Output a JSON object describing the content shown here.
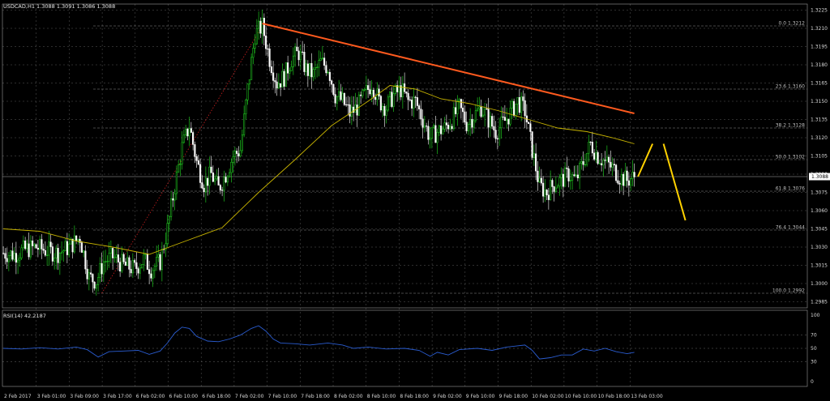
{
  "header": {
    "symbol_info": "USDCAD,H1  1.3088 1.3091 1.3086 1.3088"
  },
  "price_tag": "1.3088",
  "colors": {
    "background": "#000000",
    "grid": "#5a5a5a",
    "bull": "#22dd22",
    "bear": "#ffffff",
    "ma": "#c8b400",
    "trend": "#ff5a1e",
    "projection": "#ffd200",
    "rsi": "#2a5cd0"
  },
  "chart_data": [
    {
      "type": "candlestick",
      "title": "USDCAD,H1",
      "ylim": [
        1.298,
        1.323
      ],
      "y_ticks": [
        "1.3225",
        "1.3210",
        "1.3195",
        "1.3180",
        "1.3165",
        "1.3150",
        "1.3135",
        "1.3120",
        "1.3105",
        "1.3090",
        "1.3075",
        "1.3060",
        "1.3045",
        "1.3030",
        "1.3015",
        "1.3000",
        "1.2985"
      ],
      "x_ticks": [
        "2 Feb 2017",
        "3 Feb 01:00",
        "3 Feb 09:00",
        "3 Feb 17:00",
        "6 Feb 02:00",
        "6 Feb 10:00",
        "6 Feb 18:00",
        "7 Feb 02:00",
        "7 Feb 10:00",
        "7 Feb 18:00",
        "8 Feb 02:00",
        "8 Feb 10:00",
        "8 Feb 18:00",
        "9 Feb 02:00",
        "9 Feb 10:00",
        "9 Feb 18:00",
        "10 Feb 02:00",
        "10 Feb 10:00",
        "10 Feb 18:00",
        "13 Feb 03:00"
      ],
      "fib_levels": [
        {
          "label": "0.0 1.3212",
          "value": 1.3212
        },
        {
          "label": "23.6 1.3160",
          "value": 1.316
        },
        {
          "label": "38.2 1.3128",
          "value": 1.3128
        },
        {
          "label": "50.0 1.3102",
          "value": 1.3102
        },
        {
          "label": "61.8 1.3076",
          "value": 1.3076
        },
        {
          "label": "76.4 1.3044",
          "value": 1.3044
        },
        {
          "label": "100.0 1.2992",
          "value": 1.2992
        }
      ],
      "current_price": 1.3088,
      "series": [
        {
          "name": "price",
          "close_path": [
            [
              0,
              1.3025
            ],
            [
              6,
              1.3024
            ],
            [
              12,
              1.3028
            ],
            [
              18,
              1.303
            ],
            [
              24,
              1.3027
            ],
            [
              30,
              1.3025
            ],
            [
              36,
              1.303
            ],
            [
              42,
              1.3038
            ],
            [
              47,
              1.3005
            ],
            [
              51,
              1.3002
            ],
            [
              55,
              1.3018
            ],
            [
              60,
              1.3022
            ],
            [
              66,
              1.3015
            ],
            [
              72,
              1.3012
            ],
            [
              77,
              1.302
            ],
            [
              81,
              1.3012
            ],
            [
              86,
              1.3018
            ],
            [
              90,
              1.3045
            ],
            [
              94,
              1.308
            ],
            [
              98,
              1.3112
            ],
            [
              102,
              1.313
            ],
            [
              106,
              1.31
            ],
            [
              110,
              1.3082
            ],
            [
              114,
              1.309
            ],
            [
              118,
              1.3078
            ],
            [
              122,
              1.309
            ],
            [
              126,
              1.3105
            ],
            [
              130,
              1.311
            ],
            [
              134,
              1.316
            ],
            [
              138,
              1.3205
            ],
            [
              142,
              1.3212
            ],
            [
              146,
              1.3185
            ],
            [
              150,
              1.3165
            ],
            [
              154,
              1.317
            ],
            [
              158,
              1.3185
            ],
            [
              162,
              1.319
            ],
            [
              166,
              1.3176
            ],
            [
              170,
              1.3172
            ],
            [
              174,
              1.3182
            ],
            [
              178,
              1.3178
            ],
            [
              182,
              1.3155
            ],
            [
              186,
              1.315
            ],
            [
              190,
              1.314
            ],
            [
              194,
              1.3145
            ],
            [
              198,
              1.3155
            ],
            [
              202,
              1.3165
            ],
            [
              206,
              1.315
            ],
            [
              210,
              1.3145
            ],
            [
              214,
              1.3155
            ],
            [
              218,
              1.316
            ],
            [
              222,
              1.315
            ],
            [
              226,
              1.315
            ],
            [
              230,
              1.3135
            ],
            [
              234,
              1.312
            ],
            [
              238,
              1.3125
            ],
            [
              242,
              1.3128
            ],
            [
              246,
              1.3135
            ],
            [
              250,
              1.3145
            ],
            [
              254,
              1.3132
            ],
            [
              258,
              1.3138
            ],
            [
              262,
              1.3145
            ],
            [
              266,
              1.3135
            ],
            [
              270,
              1.3125
            ],
            [
              274,
              1.3132
            ],
            [
              278,
              1.314
            ],
            [
              282,
              1.315
            ],
            [
              286,
              1.3142
            ],
            [
              290,
              1.311
            ],
            [
              294,
              1.308
            ],
            [
              298,
              1.3075
            ],
            [
              302,
              1.3082
            ],
            [
              306,
              1.3085
            ],
            [
              310,
              1.309
            ],
            [
              314,
              1.3085
            ],
            [
              318,
              1.31
            ],
            [
              322,
              1.3115
            ],
            [
              326,
              1.3105
            ],
            [
              330,
              1.31
            ],
            [
              334,
              1.3095
            ],
            [
              338,
              1.3088
            ],
            [
              342,
              1.3085
            ],
            [
              346,
              1.3088
            ]
          ]
        },
        {
          "name": "moving-average",
          "path": [
            [
              0,
              1.3045
            ],
            [
              20,
              1.3043
            ],
            [
              40,
              1.3035
            ],
            [
              60,
              1.303
            ],
            [
              80,
              1.3024
            ],
            [
              100,
              1.3035
            ],
            [
              120,
              1.3046
            ],
            [
              140,
              1.3075
            ],
            [
              160,
              1.3102
            ],
            [
              180,
              1.313
            ],
            [
              200,
              1.315
            ],
            [
              212,
              1.3163
            ],
            [
              226,
              1.316
            ],
            [
              240,
              1.3152
            ],
            [
              256,
              1.3148
            ],
            [
              272,
              1.3142
            ],
            [
              288,
              1.3135
            ],
            [
              304,
              1.3128
            ],
            [
              320,
              1.3125
            ],
            [
              334,
              1.312
            ],
            [
              346,
              1.3115
            ]
          ]
        },
        {
          "name": "trend-line",
          "path": [
            [
              142,
              1.3214
            ],
            [
              346,
              1.314
            ]
          ]
        },
        {
          "name": "projection",
          "path": [
            [
              348,
              1.3088
            ],
            [
              356,
              1.3115
            ],
            [
              362,
              1.3115
            ],
            [
              374,
              1.3052
            ]
          ]
        }
      ]
    },
    {
      "type": "line",
      "title": "RSI(14) 42.2187",
      "ylim": [
        0,
        100
      ],
      "y_ticks": [
        "100",
        "70",
        "50",
        "30",
        "0"
      ],
      "series": [
        {
          "name": "RSI(14)",
          "path": [
            [
              0,
              50
            ],
            [
              10,
              49
            ],
            [
              20,
              51
            ],
            [
              30,
              49
            ],
            [
              40,
              52
            ],
            [
              46,
              48
            ],
            [
              52,
              37
            ],
            [
              58,
              45
            ],
            [
              66,
              46
            ],
            [
              74,
              47
            ],
            [
              80,
              41
            ],
            [
              86,
              46
            ],
            [
              90,
              58
            ],
            [
              94,
              73
            ],
            [
              98,
              82
            ],
            [
              102,
              80
            ],
            [
              106,
              68
            ],
            [
              112,
              61
            ],
            [
              118,
              60
            ],
            [
              124,
              64
            ],
            [
              130,
              70
            ],
            [
              136,
              80
            ],
            [
              140,
              84
            ],
            [
              144,
              76
            ],
            [
              148,
              64
            ],
            [
              152,
              58
            ],
            [
              160,
              57
            ],
            [
              168,
              55
            ],
            [
              178,
              58
            ],
            [
              186,
              55
            ],
            [
              192,
              50
            ],
            [
              200,
              52
            ],
            [
              210,
              49
            ],
            [
              220,
              50
            ],
            [
              228,
              47
            ],
            [
              234,
              38
            ],
            [
              238,
              44
            ],
            [
              244,
              40
            ],
            [
              250,
              48
            ],
            [
              260,
              50
            ],
            [
              268,
              47
            ],
            [
              276,
              52
            ],
            [
              286,
              55
            ],
            [
              290,
              47
            ],
            [
              294,
              34
            ],
            [
              300,
              36
            ],
            [
              306,
              40
            ],
            [
              312,
              40
            ],
            [
              318,
              49
            ],
            [
              324,
              46
            ],
            [
              330,
              50
            ],
            [
              336,
              45
            ],
            [
              342,
              42
            ],
            [
              346,
              44
            ]
          ]
        }
      ]
    }
  ]
}
